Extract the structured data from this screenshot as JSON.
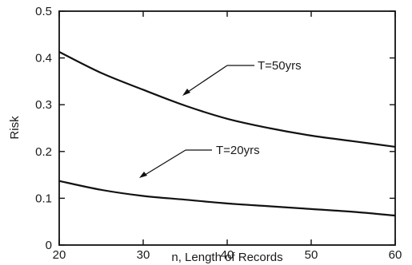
{
  "chart_data": {
    "type": "line",
    "x": [
      20,
      25,
      30,
      35,
      40,
      45,
      50,
      55,
      60
    ],
    "series": [
      {
        "name": "T=50yrs",
        "values": [
          0.413,
          0.368,
          0.332,
          0.298,
          0.27,
          0.25,
          0.234,
          0.222,
          0.21
        ]
      },
      {
        "name": "T=20yrs",
        "values": [
          0.137,
          0.118,
          0.105,
          0.097,
          0.089,
          0.083,
          0.077,
          0.071,
          0.063
        ]
      }
    ],
    "xlabel": "n, Length of Records",
    "ylabel": "Risk",
    "xlim": [
      20,
      60
    ],
    "ylim": [
      0,
      0.5
    ],
    "xticks": [
      "20",
      "30",
      "40",
      "50",
      "60"
    ],
    "yticks": [
      "0",
      "0.1",
      "0.2",
      "0.3",
      "0.4",
      "0.5"
    ],
    "grid": false,
    "annotations": [
      "T=50yrs",
      "T=20yrs"
    ]
  }
}
